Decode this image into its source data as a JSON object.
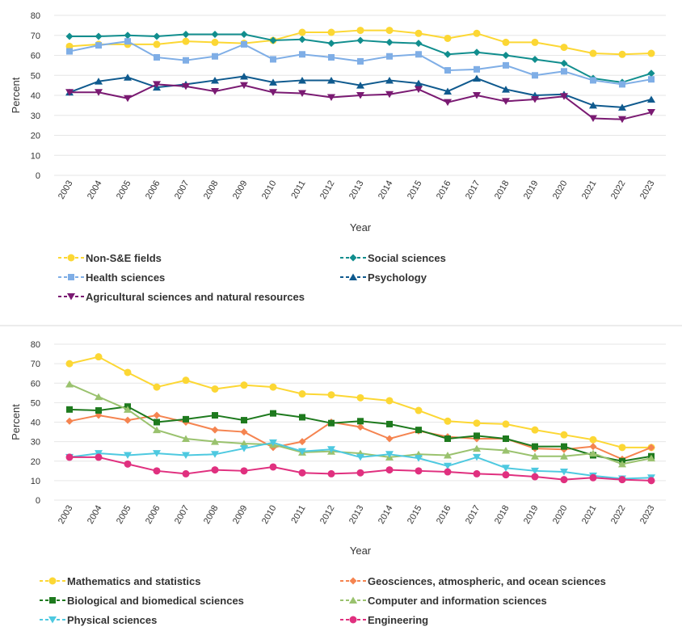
{
  "chart_data": [
    {
      "type": "line",
      "xlabel": "Year",
      "ylabel": "Percent",
      "ylim": [
        0,
        80
      ],
      "yticks": [
        0,
        10,
        20,
        30,
        40,
        50,
        60,
        70,
        80
      ],
      "grid": true,
      "legend_position": "bottom",
      "categories": [
        "2003",
        "2004",
        "2005",
        "2006",
        "2007",
        "2008",
        "2009",
        "2010",
        "2011",
        "2012",
        "2013",
        "2014",
        "2015",
        "2016",
        "2017",
        "2018",
        "2019",
        "2020",
        "2021",
        "2022",
        "2023"
      ],
      "series": [
        {
          "name": "Non-S&E fields",
          "color": "#fcd734",
          "marker": "circle",
          "values": [
            64.5,
            65.5,
            65.5,
            65.5,
            67,
            66.5,
            66,
            67.5,
            71.5,
            71.5,
            72.5,
            72.5,
            71,
            68.5,
            71,
            66.5,
            66.5,
            64,
            61,
            60.5,
            61
          ]
        },
        {
          "name": "Social sciences",
          "color": "#118e8e",
          "marker": "diamond",
          "values": [
            69.5,
            69.5,
            70,
            69.5,
            70.5,
            70.5,
            70.5,
            67.5,
            68,
            66,
            67.5,
            66.5,
            66,
            60.5,
            61.5,
            60,
            58,
            56,
            48.5,
            46.5,
            51
          ]
        },
        {
          "name": "Health sciences",
          "color": "#7faee6",
          "marker": "square",
          "values": [
            62,
            65,
            67,
            59,
            57.5,
            59.5,
            65.5,
            58,
            60.5,
            59,
            57,
            59.5,
            60.5,
            52.5,
            53,
            55,
            50,
            52,
            47.5,
            45.5,
            48
          ]
        },
        {
          "name": "Psychology",
          "color": "#0f5a8e",
          "marker": "triangle",
          "values": [
            41.5,
            47,
            49,
            44,
            45.5,
            47.5,
            49.5,
            46.5,
            47.5,
            47.5,
            45,
            47.5,
            46,
            42,
            48.5,
            43,
            40,
            40.5,
            35,
            34,
            38
          ]
        },
        {
          "name": "Agricultural sciences and natural resources",
          "color": "#7a1a72",
          "marker": "triangle-down",
          "values": [
            41.5,
            41.5,
            38.5,
            45.5,
            44.5,
            42,
            45,
            41.5,
            41,
            39,
            40,
            40.5,
            43,
            36.5,
            40,
            37,
            38,
            39.5,
            28.5,
            28,
            31.5
          ]
        }
      ]
    },
    {
      "type": "line",
      "xlabel": "Year",
      "ylabel": "Percent",
      "ylim": [
        0,
        80
      ],
      "yticks": [
        0,
        10,
        20,
        30,
        40,
        50,
        60,
        70,
        80
      ],
      "grid": true,
      "legend_position": "bottom",
      "categories": [
        "2003",
        "2004",
        "2005",
        "2006",
        "2007",
        "2008",
        "2009",
        "2010",
        "2011",
        "2012",
        "2013",
        "2014",
        "2015",
        "2016",
        "2017",
        "2018",
        "2019",
        "2020",
        "2021",
        "2022",
        "2023"
      ],
      "series": [
        {
          "name": "Mathematics and statistics",
          "color": "#fcd734",
          "marker": "circle",
          "values": [
            70,
            73.5,
            65.5,
            58,
            61.5,
            57,
            59,
            58,
            54.5,
            54,
            52.5,
            51,
            46,
            40.5,
            39.5,
            39,
            36,
            33.5,
            31,
            27,
            27
          ]
        },
        {
          "name": "Geosciences, atmospheric, and ocean sciences",
          "color": "#f58450",
          "marker": "diamond",
          "values": [
            40.5,
            43.5,
            41,
            43.5,
            40,
            36,
            35,
            27,
            30,
            40,
            37.5,
            31.5,
            35.5,
            32.5,
            31.5,
            31.5,
            26.5,
            26,
            27.5,
            21,
            27
          ]
        },
        {
          "name": "Biological and biomedical sciences",
          "color": "#1e7a1e",
          "marker": "square",
          "values": [
            46.5,
            46,
            48,
            40,
            41.5,
            43.5,
            41,
            44.5,
            42.5,
            39.5,
            40.5,
            39,
            36,
            31.5,
            33,
            31.5,
            27.5,
            27.5,
            23,
            20,
            22.5
          ]
        },
        {
          "name": "Computer and information sciences",
          "color": "#9ac26e",
          "marker": "triangle",
          "values": [
            59.5,
            53,
            46.5,
            36,
            31.5,
            30,
            29,
            28.5,
            24.5,
            25,
            24,
            22,
            23.5,
            23,
            26.5,
            25.5,
            22.5,
            22.5,
            24,
            18.5,
            21.5
          ]
        },
        {
          "name": "Physical sciences",
          "color": "#4ec9e0",
          "marker": "triangle-down",
          "values": [
            22,
            24,
            23,
            24,
            23,
            23.5,
            26.5,
            29.5,
            25,
            26,
            22,
            23.5,
            21.5,
            17.5,
            22,
            16.5,
            15,
            14.5,
            12.5,
            11,
            11.5
          ]
        },
        {
          "name": "Engineering",
          "color": "#e0307f",
          "marker": "circle",
          "values": [
            22,
            22,
            18.5,
            15,
            13.5,
            15.5,
            15,
            17,
            14,
            13.5,
            14,
            15.5,
            15,
            14.5,
            13.5,
            13,
            12,
            10.5,
            11.5,
            10.5,
            10
          ]
        }
      ]
    }
  ]
}
